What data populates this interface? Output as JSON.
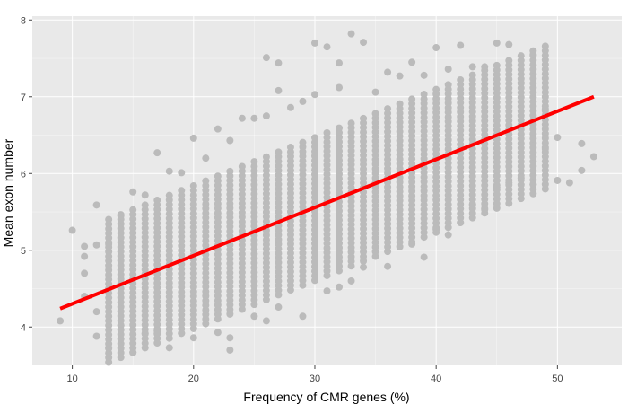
{
  "chart_data": {
    "type": "scatter",
    "title": "",
    "xlabel": "Frequency of CMR genes (%)",
    "ylabel": "Mean exon number",
    "xlim": [
      6.7,
      55.3
    ],
    "ylim": [
      3.5,
      8.05
    ],
    "x_ticks": [
      "10",
      "20",
      "30",
      "40",
      "50"
    ],
    "y_ticks": [
      "4",
      "5",
      "6",
      "7",
      "8"
    ],
    "x_tick_values": [
      10,
      20,
      30,
      40,
      50
    ],
    "y_tick_values": [
      4,
      5,
      6,
      7,
      8
    ],
    "grid": true,
    "legend": "none",
    "colors": {
      "panel_background": "#e9e9e9",
      "grid_major": "#ffffff",
      "points": "#bbbbbb",
      "fit_line": "#ff0000"
    },
    "trend_line": {
      "type": "linear",
      "x": [
        9,
        53
      ],
      "y": [
        4.24,
        7.0
      ]
    },
    "marginal_points": [
      [
        9,
        4.08
      ],
      [
        10,
        5.26
      ],
      [
        11,
        5.05
      ],
      [
        11,
        4.92
      ],
      [
        11,
        4.7
      ],
      [
        11,
        4.4
      ],
      [
        12,
        5.59
      ],
      [
        12,
        5.07
      ],
      [
        12,
        3.88
      ],
      [
        12,
        4.2
      ],
      [
        13,
        3.73
      ],
      [
        13,
        5.08
      ],
      [
        14,
        5.45
      ],
      [
        14,
        4.02
      ],
      [
        15,
        5.76
      ],
      [
        15,
        3.67
      ],
      [
        16,
        5.72
      ],
      [
        16,
        3.92
      ],
      [
        17,
        6.27
      ],
      [
        17,
        3.95
      ],
      [
        18,
        6.03
      ],
      [
        18,
        3.73
      ],
      [
        19,
        6.01
      ],
      [
        19,
        3.92
      ],
      [
        20,
        6.46
      ],
      [
        20,
        3.86
      ],
      [
        21,
        6.2
      ],
      [
        22,
        6.58
      ],
      [
        22,
        3.93
      ],
      [
        23,
        6.43
      ],
      [
        23,
        3.86
      ],
      [
        23,
        3.7
      ],
      [
        24,
        6.72
      ],
      [
        25,
        6.72
      ],
      [
        25,
        4.14
      ],
      [
        26,
        7.51
      ],
      [
        26,
        6.75
      ],
      [
        26,
        4.08
      ],
      [
        27,
        7.44
      ],
      [
        27,
        7.08
      ],
      [
        27,
        4.26
      ],
      [
        28,
        6.86
      ],
      [
        29,
        6.94
      ],
      [
        29,
        4.14
      ],
      [
        30,
        7.7
      ],
      [
        30,
        7.03
      ],
      [
        31,
        7.65
      ],
      [
        31,
        4.47
      ],
      [
        32,
        7.44
      ],
      [
        32,
        7.12
      ],
      [
        32,
        4.52
      ],
      [
        33,
        7.82
      ],
      [
        33,
        4.6
      ],
      [
        34,
        7.71
      ],
      [
        34,
        4.78
      ],
      [
        35,
        7.06
      ],
      [
        36,
        7.32
      ],
      [
        36,
        4.79
      ],
      [
        37,
        7.27
      ],
      [
        38,
        7.45
      ],
      [
        38,
        5.08
      ],
      [
        39,
        7.28
      ],
      [
        39,
        4.91
      ],
      [
        40,
        7.64
      ],
      [
        40,
        5.27
      ],
      [
        41,
        7.36
      ],
      [
        41,
        5.2
      ],
      [
        42,
        7.67
      ],
      [
        42,
        5.36
      ],
      [
        43,
        7.39
      ],
      [
        43,
        5.59
      ],
      [
        44,
        7.39
      ],
      [
        44,
        5.53
      ],
      [
        45,
        7.7
      ],
      [
        45,
        5.82
      ],
      [
        46,
        7.68
      ],
      [
        46,
        5.88
      ],
      [
        47,
        7.18
      ],
      [
        47,
        5.94
      ],
      [
        48,
        7.55
      ],
      [
        48,
        5.86
      ],
      [
        49,
        6.84
      ],
      [
        49,
        6.32
      ],
      [
        50,
        6.47
      ],
      [
        50,
        5.91
      ],
      [
        51,
        5.88
      ],
      [
        52,
        6.39
      ],
      [
        52,
        6.04
      ],
      [
        53,
        6.22
      ]
    ]
  }
}
